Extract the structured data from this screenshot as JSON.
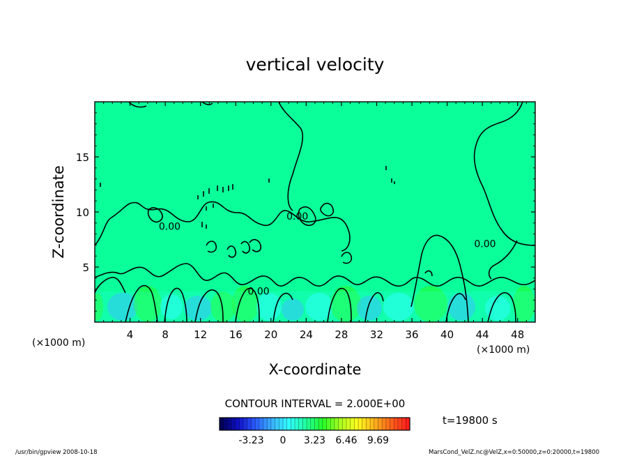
{
  "chart_data": {
    "type": "heatmap",
    "title": "vertical velocity",
    "xlabel": "X-coordinate",
    "ylabel": "Z-coordinate",
    "x_unit_left": "(×1000 m)",
    "x_unit_right": "(×1000 m)",
    "xlim": [
      0,
      50
    ],
    "ylim": [
      0,
      20
    ],
    "x_ticks": [
      4,
      8,
      12,
      16,
      20,
      24,
      28,
      32,
      36,
      40,
      44,
      48
    ],
    "y_ticks": [
      5,
      10,
      15
    ],
    "x_tick_labels": [
      "4",
      "8",
      "12",
      "16",
      "20",
      "24",
      "28",
      "32",
      "36",
      "40",
      "44",
      "48"
    ],
    "y_tick_labels": [
      "5",
      "10",
      "15"
    ],
    "contour_interval_label": "CONTOUR INTERVAL = 2.000E+00",
    "contour_labels": [
      {
        "text": "0.00",
        "x": 8.5,
        "y": 8.4
      },
      {
        "text": "0.00",
        "x": 18.6,
        "y": 2.5
      },
      {
        "text": "0.00",
        "x": 23.0,
        "y": 9.3
      },
      {
        "text": "0.00",
        "x": 44.3,
        "y": 6.8
      }
    ],
    "time_label": "t=19800 s",
    "colorbar": {
      "range": [
        -6.46,
        12.92
      ],
      "tick_labels": [
        "-3.23",
        "0",
        "3.23",
        "6.46",
        "9.69"
      ],
      "tick_values": [
        -3.23,
        0,
        3.23,
        6.46,
        9.69
      ],
      "colors": [
        "#00005a",
        "#1010c8",
        "#2a5cff",
        "#3ab4ff",
        "#30ffff",
        "#20ff9c",
        "#26ff26",
        "#a8ff20",
        "#ffff1e",
        "#ffb41c",
        "#ff641a",
        "#ff1e1e"
      ]
    },
    "field_color": "#0aff9a",
    "grid": false
  },
  "footer": {
    "left": "/usr/bin/gpview  2008-10-18",
    "right": "MarsCond_VelZ.nc@VelZ,x=0:50000,z=0:20000,t=19800"
  }
}
